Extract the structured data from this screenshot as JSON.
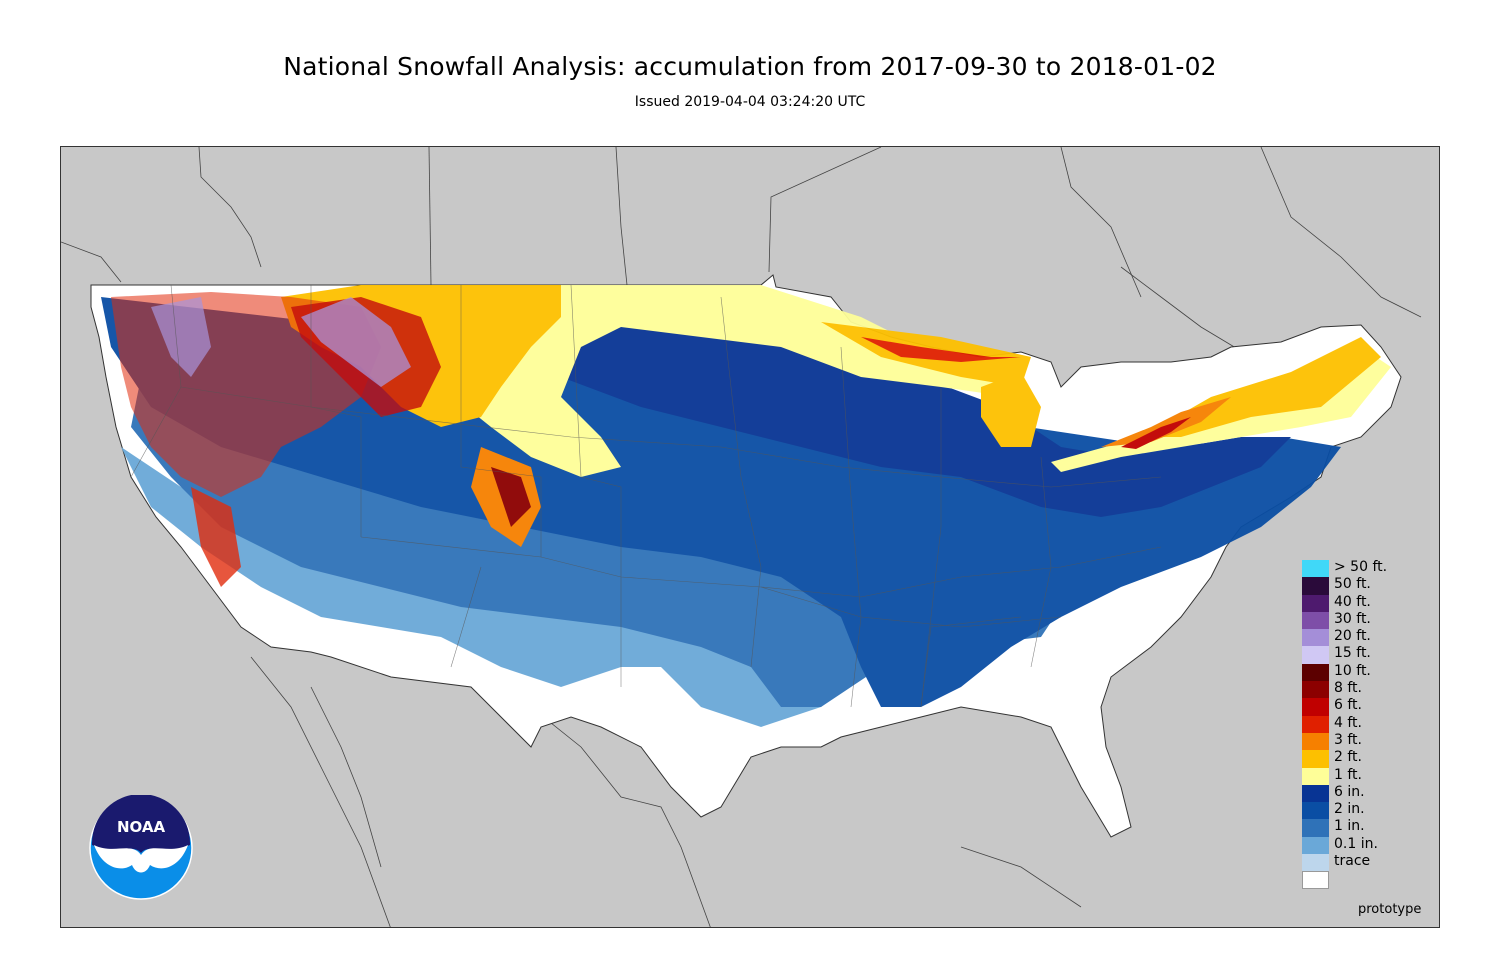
{
  "title": "National Snowfall Analysis: accumulation from 2017-09-30 to 2018-01-02",
  "subtitle": "Issued 2019-04-04 03:24:20 UTC",
  "watermark": "prototype",
  "logo_text": "NOAA",
  "legend": [
    {
      "label": "> 50 ft.",
      "color": "#40d8f8"
    },
    {
      "label": "50 ft.",
      "color": "#2a0a3a"
    },
    {
      "label": "40 ft.",
      "color": "#4e1a6e"
    },
    {
      "label": "30 ft.",
      "color": "#7e4ea8"
    },
    {
      "label": "20 ft.",
      "color": "#a48ed8"
    },
    {
      "label": "15 ft.",
      "color": "#d0c8f4"
    },
    {
      "label": "10 ft.",
      "color": "#5c0000"
    },
    {
      "label": "8 ft.",
      "color": "#8c0000"
    },
    {
      "label": "6 ft.",
      "color": "#c00000"
    },
    {
      "label": "4 ft.",
      "color": "#e02000"
    },
    {
      "label": "3 ft.",
      "color": "#f68000"
    },
    {
      "label": "2 ft.",
      "color": "#fdc000"
    },
    {
      "label": "1 ft.",
      "color": "#fefe98"
    },
    {
      "label": "6 in.",
      "color": "#083494"
    },
    {
      "label": "2 in.",
      "color": "#0a4ea4"
    },
    {
      "label": "1 in.",
      "color": "#2f72b8"
    },
    {
      "label": "0.1 in.",
      "color": "#6aa8d8"
    },
    {
      "label": "trace",
      "color": "#bdd6ec"
    },
    {
      "label": "",
      "color": "#ffffff"
    }
  ]
}
